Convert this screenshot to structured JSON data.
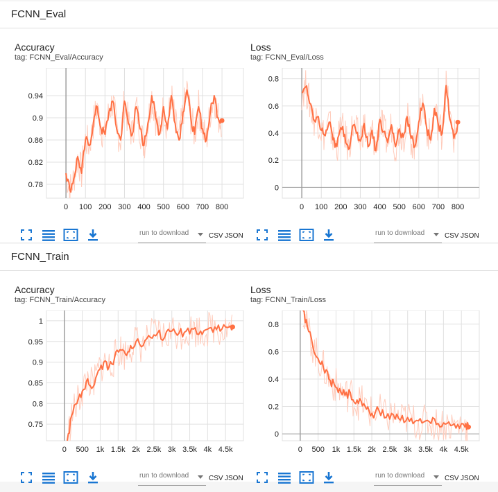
{
  "colors": {
    "line": "#ff7043",
    "smooth": "#ff7043",
    "raw": "#ffccbc",
    "axis": "#9e9e9e",
    "grid": "#e0e0e0",
    "icon": "#1976d2"
  },
  "toolbar": {
    "select_label": "run to download",
    "csv_label": "CSV",
    "json_label": "JSON",
    "icons": [
      "expand-icon",
      "list-icon",
      "fit-domain-icon",
      "download-icon"
    ]
  },
  "sections": [
    {
      "title": "FCNN_Eval",
      "cards": [
        {
          "title": "Accuracy",
          "tag": "tag: FCNN_Eval/Accuracy",
          "chart_data": {
            "type": "line",
            "title": "Accuracy",
            "xlabel": "",
            "ylabel": "",
            "xlim": [
              -100,
              910
            ],
            "ylim": [
              0.755,
              0.99
            ],
            "xticks": [
              0,
              100,
              200,
              300,
              400,
              500,
              600,
              700,
              800
            ],
            "xtick_labels": [
              "0",
              "100",
              "200",
              "300",
              "400",
              "500",
              "600",
              "700",
              "800"
            ],
            "yticks": [
              0.78,
              0.82,
              0.86,
              0.9,
              0.94
            ],
            "ytick_labels": [
              "0.78",
              "0.82",
              "0.86",
              "0.9",
              "0.94"
            ],
            "grid": true,
            "series": [
              {
                "x": [
                  0,
                  20,
                  40,
                  60,
                  80,
                  100,
                  120,
                  140,
                  160,
                  180,
                  200,
                  220,
                  240,
                  260,
                  280,
                  300,
                  320,
                  340,
                  360,
                  380,
                  400,
                  420,
                  440,
                  460,
                  480,
                  500,
                  520,
                  540,
                  560,
                  580,
                  600,
                  620,
                  640,
                  660,
                  680,
                  700,
                  720,
                  740,
                  760,
                  780,
                  800
                ],
                "y": [
                  0.8,
                  0.77,
                  0.79,
                  0.83,
                  0.8,
                  0.86,
                  0.85,
                  0.89,
                  0.92,
                  0.88,
                  0.87,
                  0.91,
                  0.93,
                  0.88,
                  0.86,
                  0.93,
                  0.89,
                  0.87,
                  0.92,
                  0.88,
                  0.85,
                  0.89,
                  0.94,
                  0.9,
                  0.87,
                  0.92,
                  0.88,
                  0.94,
                  0.89,
                  0.86,
                  0.91,
                  0.95,
                  0.9,
                  0.87,
                  0.92,
                  0.88,
                  0.86,
                  0.91,
                  0.94,
                  0.9,
                  0.895
                ]
              }
            ]
          }
        },
        {
          "title": "Loss",
          "tag": "tag: FCNN_Eval/Loss",
          "chart_data": {
            "type": "line",
            "title": "Loss",
            "xlabel": "",
            "ylabel": "",
            "xlim": [
              -100,
              910
            ],
            "ylim": [
              -0.08,
              0.88
            ],
            "xticks": [
              0,
              100,
              200,
              300,
              400,
              500,
              600,
              700,
              800
            ],
            "xtick_labels": [
              "0",
              "100",
              "200",
              "300",
              "400",
              "500",
              "600",
              "700",
              "800"
            ],
            "yticks": [
              0,
              0.2,
              0.4,
              0.6,
              0.8
            ],
            "ytick_labels": [
              "0",
              "0.2",
              "0.4",
              "0.6",
              "0.8"
            ],
            "grid": true,
            "series": [
              {
                "x": [
                  0,
                  20,
                  40,
                  60,
                  80,
                  100,
                  120,
                  140,
                  160,
                  180,
                  200,
                  220,
                  240,
                  260,
                  280,
                  300,
                  320,
                  340,
                  360,
                  380,
                  400,
                  420,
                  440,
                  460,
                  480,
                  500,
                  520,
                  540,
                  560,
                  580,
                  600,
                  620,
                  640,
                  660,
                  680,
                  700,
                  720,
                  740,
                  760,
                  780,
                  800
                ],
                "y": [
                  0.7,
                  0.74,
                  0.62,
                  0.5,
                  0.52,
                  0.42,
                  0.38,
                  0.48,
                  0.35,
                  0.3,
                  0.44,
                  0.39,
                  0.28,
                  0.45,
                  0.4,
                  0.34,
                  0.47,
                  0.3,
                  0.42,
                  0.27,
                  0.5,
                  0.41,
                  0.33,
                  0.46,
                  0.3,
                  0.43,
                  0.37,
                  0.52,
                  0.36,
                  0.3,
                  0.48,
                  0.62,
                  0.44,
                  0.35,
                  0.58,
                  0.46,
                  0.4,
                  0.75,
                  0.5,
                  0.36,
                  0.48
                ]
              }
            ]
          }
        }
      ]
    },
    {
      "title": "FCNN_Train",
      "cards": [
        {
          "title": "Accuracy",
          "tag": "tag: FCNN_Train/Accuracy",
          "chart_data": {
            "type": "line",
            "title": "Accuracy",
            "xlabel": "",
            "ylabel": "",
            "xlim": [
              -500,
              5000
            ],
            "ylim": [
              0.71,
              1.025
            ],
            "xticks": [
              0,
              500,
              1000,
              1500,
              2000,
              2500,
              3000,
              3500,
              4000,
              4500
            ],
            "xtick_labels": [
              "0",
              "500",
              "1k",
              "1.5k",
              "2k",
              "2.5k",
              "3k",
              "3.5k",
              "4k",
              "4.5k"
            ],
            "yticks": [
              0.75,
              0.8,
              0.85,
              0.9,
              0.95,
              1
            ],
            "ytick_labels": [
              "0.75",
              "0.8",
              "0.85",
              "0.9",
              "0.95",
              "1"
            ],
            "grid": true,
            "series": [
              {
                "x": [
                  80,
                  200,
                  350,
                  500,
                  650,
                  800,
                  950,
                  1100,
                  1250,
                  1400,
                  1550,
                  1700,
                  1850,
                  2000,
                  2200,
                  2400,
                  2600,
                  2800,
                  3000,
                  3200,
                  3400,
                  3600,
                  3800,
                  4000,
                  4200,
                  4400,
                  4600,
                  4700
                ],
                "y": [
                  0.71,
                  0.77,
                  0.8,
                  0.83,
                  0.86,
                  0.84,
                  0.88,
                  0.9,
                  0.89,
                  0.91,
                  0.93,
                  0.92,
                  0.94,
                  0.95,
                  0.94,
                  0.96,
                  0.97,
                  0.96,
                  0.975,
                  0.97,
                  0.975,
                  0.98,
                  0.975,
                  0.98,
                  0.985,
                  0.98,
                  0.985,
                  0.985
                ]
              }
            ]
          }
        },
        {
          "title": "Loss",
          "tag": "tag: FCNN_Train/Loss",
          "chart_data": {
            "type": "line",
            "title": "Loss",
            "xlabel": "",
            "ylabel": "",
            "xlim": [
              -500,
              5000
            ],
            "ylim": [
              -0.05,
              0.9
            ],
            "xticks": [
              0,
              500,
              1000,
              1500,
              2000,
              2500,
              3000,
              3500,
              4000,
              4500
            ],
            "xtick_labels": [
              "0",
              "500",
              "1k",
              "1.5k",
              "2k",
              "2.5k",
              "3k",
              "3.5k",
              "4k",
              "4.5k"
            ],
            "yticks": [
              0,
              0.2,
              0.4,
              0.6,
              0.8
            ],
            "ytick_labels": [
              "0",
              "0.2",
              "0.4",
              "0.6",
              "0.8"
            ],
            "grid": true,
            "series": [
              {
                "x": [
                  80,
                  200,
                  350,
                  500,
                  650,
                  800,
                  950,
                  1100,
                  1250,
                  1400,
                  1550,
                  1700,
                  1850,
                  2000,
                  2200,
                  2400,
                  2600,
                  2800,
                  3000,
                  3200,
                  3400,
                  3600,
                  3800,
                  4000,
                  4200,
                  4400,
                  4600,
                  4700
                ],
                "y": [
                  0.9,
                  0.78,
                  0.64,
                  0.55,
                  0.48,
                  0.4,
                  0.36,
                  0.33,
                  0.28,
                  0.3,
                  0.22,
                  0.24,
                  0.18,
                  0.15,
                  0.17,
                  0.12,
                  0.14,
                  0.1,
                  0.12,
                  0.09,
                  0.08,
                  0.09,
                  0.07,
                  0.08,
                  0.06,
                  0.07,
                  0.05,
                  0.05
                ]
              }
            ]
          }
        }
      ]
    }
  ]
}
